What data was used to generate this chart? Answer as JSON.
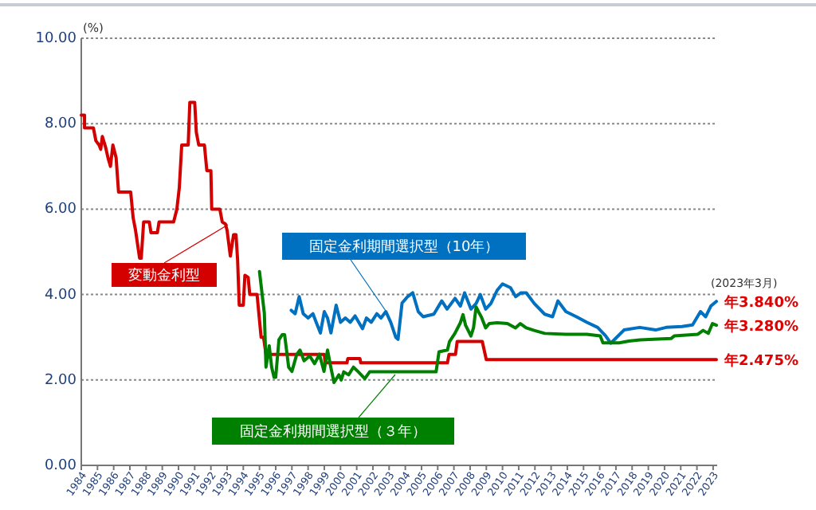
{
  "chart_data": {
    "type": "line",
    "ylabel": "(%)",
    "xlim": [
      1984,
      2023.25
    ],
    "xticks": [
      1984,
      1985,
      1986,
      1987,
      1988,
      1989,
      1990,
      1991,
      1992,
      1993,
      1994,
      1995,
      1996,
      1997,
      1998,
      1999,
      2000,
      2001,
      2002,
      2003,
      2004,
      2005,
      2006,
      2007,
      2008,
      2009,
      2010,
      2011,
      2012,
      2013,
      2014,
      2015,
      2016,
      2017,
      2018,
      2019,
      2020,
      2021,
      2022,
      2023
    ],
    "ylim": [
      0,
      10
    ],
    "yticks": [
      {
        "value": 0,
        "label": "0.00"
      },
      {
        "value": 2,
        "label": "2.00"
      },
      {
        "value": 4,
        "label": "4.00"
      },
      {
        "value": 6,
        "label": "6.00"
      },
      {
        "value": 8,
        "label": "8.00"
      },
      {
        "value": 10,
        "label": "10.00"
      }
    ],
    "grid": "y",
    "legend": false,
    "marker": "none",
    "line_style": "solid",
    "series": [
      {
        "name": "変動金利型",
        "color": "#d40000",
        "x": [
          1984.0,
          1984.2,
          1984.2,
          1984.75,
          1984.9,
          1985.1,
          1985.2,
          1985.3,
          1985.5,
          1985.65,
          1985.8,
          1985.95,
          1986.15,
          1986.3,
          1987.05,
          1987.2,
          1987.35,
          1987.6,
          1987.7,
          1987.85,
          1988.2,
          1988.3,
          1988.7,
          1988.8,
          1989.7,
          1989.9,
          1990.05,
          1990.2,
          1990.6,
          1990.7,
          1991.0,
          1991.1,
          1991.25,
          1991.6,
          1991.75,
          1992.0,
          1992.05,
          1992.55,
          1992.7,
          1992.9,
          1993.0,
          1993.2,
          1993.4,
          1993.55,
          1993.65,
          1993.75,
          1994.0,
          1994.1,
          1994.3,
          1994.4,
          1994.85,
          1995.1,
          1995.25,
          1995.4,
          1999.0,
          1999.05,
          2000.4,
          2000.45,
          2001.2,
          2001.25,
          2006.6,
          2006.7,
          2007.1,
          2007.2,
          2008.75,
          2009.0,
          2023.2
        ],
        "values": [
          8.2,
          8.2,
          7.9,
          7.9,
          7.6,
          7.5,
          7.4,
          7.7,
          7.45,
          7.2,
          7.0,
          7.5,
          7.2,
          6.4,
          6.4,
          5.8,
          5.5,
          4.85,
          4.85,
          5.7,
          5.7,
          5.45,
          5.45,
          5.7,
          5.7,
          6.0,
          6.5,
          7.5,
          7.5,
          8.5,
          8.5,
          7.8,
          7.5,
          7.5,
          6.9,
          6.9,
          6.0,
          6.0,
          5.7,
          5.65,
          5.5,
          4.9,
          5.4,
          5.4,
          4.8,
          3.75,
          3.75,
          4.45,
          4.4,
          4.0,
          4.0,
          3.0,
          3.0,
          2.6,
          2.6,
          2.4,
          2.4,
          2.5,
          2.5,
          2.4,
          2.4,
          2.6,
          2.6,
          2.9,
          2.9,
          2.475,
          2.475
        ],
        "value_labels": [
          null,
          null,
          null,
          null,
          null,
          null,
          null,
          null,
          null,
          null,
          null,
          null,
          null,
          null,
          null,
          null,
          null,
          null,
          null,
          null,
          null,
          null,
          null,
          null,
          null,
          null,
          null,
          null,
          null,
          null,
          null,
          null,
          null,
          null,
          null,
          null,
          null,
          null,
          null,
          null,
          null,
          null,
          null,
          null,
          null,
          null,
          null,
          null,
          null,
          null,
          null,
          null,
          null,
          null,
          null,
          null,
          null,
          null,
          null,
          null,
          null,
          null,
          null,
          null,
          null,
          null,
          "年2.475%"
        ]
      },
      {
        "name": "固定金利期間選択型（10年）",
        "color": "#0070c0",
        "x": [
          1996.96,
          1997.2,
          1997.45,
          1997.7,
          1998.0,
          1998.3,
          1998.5,
          1998.76,
          1999.0,
          1999.2,
          1999.41,
          1999.73,
          2000.0,
          2000.3,
          2000.6,
          2000.9,
          2001.36,
          2001.6,
          2001.9,
          2002.24,
          2002.5,
          2002.8,
          2003.1,
          2003.41,
          2003.55,
          2003.8,
          2004.14,
          2004.46,
          2004.8,
          2005.1,
          2005.76,
          2006.25,
          2006.58,
          2007.07,
          2007.4,
          2007.66,
          2008.05,
          2008.37,
          2008.63,
          2008.96,
          2009.28,
          2009.67,
          2010.0,
          2010.49,
          2010.81,
          2011.14,
          2011.47,
          2011.96,
          2012.6,
          2013.09,
          2013.42,
          2013.91,
          2014.56,
          2015.21,
          2015.87,
          2016.35,
          2016.68,
          2017.0,
          2017.5,
          2018.47,
          2019.45,
          2020.1,
          2021.08,
          2021.73,
          2022.22,
          2022.54,
          2022.86,
          2023.2
        ],
        "values": [
          3.63,
          3.55,
          3.95,
          3.55,
          3.45,
          3.55,
          3.35,
          3.1,
          3.6,
          3.45,
          3.1,
          3.75,
          3.35,
          3.45,
          3.35,
          3.5,
          3.2,
          3.45,
          3.35,
          3.55,
          3.45,
          3.6,
          3.35,
          3.0,
          2.95,
          3.8,
          3.95,
          4.04,
          3.6,
          3.48,
          3.54,
          3.85,
          3.66,
          3.91,
          3.73,
          4.04,
          3.66,
          3.79,
          4.0,
          3.66,
          3.79,
          4.1,
          4.25,
          4.16,
          3.95,
          4.04,
          4.04,
          3.79,
          3.54,
          3.48,
          3.85,
          3.6,
          3.48,
          3.35,
          3.23,
          3.04,
          2.86,
          2.98,
          3.17,
          3.23,
          3.17,
          3.23,
          3.25,
          3.29,
          3.6,
          3.48,
          3.73,
          3.84
        ],
        "value_labels": [
          null,
          null,
          null,
          null,
          null,
          null,
          null,
          null,
          null,
          null,
          null,
          null,
          null,
          null,
          null,
          null,
          null,
          null,
          null,
          null,
          null,
          null,
          null,
          null,
          null,
          null,
          null,
          null,
          null,
          null,
          null,
          null,
          null,
          null,
          null,
          null,
          null,
          null,
          null,
          null,
          null,
          null,
          null,
          null,
          null,
          null,
          null,
          null,
          null,
          null,
          null,
          null,
          null,
          null,
          null,
          null,
          null,
          null,
          null,
          null,
          null,
          null,
          null,
          null,
          null,
          null,
          null,
          "年3.840%"
        ]
      },
      {
        "name": "固定金利期間選択型（３年）",
        "color": "#008000",
        "x": [
          1995.0,
          1995.3,
          1995.4,
          1995.6,
          1995.75,
          1995.9,
          1996.0,
          1996.2,
          1996.4,
          1996.55,
          1996.8,
          1997.0,
          1997.3,
          1997.5,
          1997.75,
          1998.1,
          1998.4,
          1998.7,
          1998.98,
          1999.2,
          1999.4,
          1999.6,
          1999.9,
          2000.05,
          2000.2,
          2000.5,
          2000.8,
          2001.1,
          2001.5,
          2001.8,
          2005.9,
          2006.08,
          2006.6,
          2006.73,
          2007.06,
          2007.4,
          2007.56,
          2007.72,
          2008.05,
          2008.21,
          2008.37,
          2008.53,
          2008.7,
          2008.96,
          2009.18,
          2009.67,
          2010.3,
          2010.8,
          2011.1,
          2011.46,
          2011.95,
          2012.6,
          2013.9,
          2015.2,
          2016.03,
          2016.2,
          2017.2,
          2017.8,
          2018.5,
          2020.4,
          2020.6,
          2022.06,
          2022.38,
          2022.7,
          2022.96,
          2023.2
        ],
        "values": [
          4.54,
          3.56,
          2.3,
          2.8,
          2.3,
          2.06,
          2.06,
          2.94,
          3.06,
          3.06,
          2.3,
          2.2,
          2.6,
          2.7,
          2.45,
          2.56,
          2.38,
          2.6,
          2.2,
          2.7,
          2.3,
          1.94,
          2.12,
          2.0,
          2.19,
          2.12,
          2.3,
          2.19,
          2.03,
          2.19,
          2.19,
          2.66,
          2.7,
          2.9,
          3.09,
          3.34,
          3.53,
          3.28,
          3.03,
          3.22,
          3.71,
          3.59,
          3.47,
          3.22,
          3.32,
          3.34,
          3.32,
          3.22,
          3.32,
          3.22,
          3.16,
          3.09,
          3.07,
          3.07,
          3.03,
          2.87,
          2.87,
          2.91,
          2.94,
          2.97,
          3.03,
          3.07,
          3.16,
          3.09,
          3.32,
          3.28
        ],
        "value_labels": [
          null,
          null,
          null,
          null,
          null,
          null,
          null,
          null,
          null,
          null,
          null,
          null,
          null,
          null,
          null,
          null,
          null,
          null,
          null,
          null,
          null,
          null,
          null,
          null,
          null,
          null,
          null,
          null,
          null,
          null,
          null,
          null,
          null,
          null,
          null,
          null,
          null,
          null,
          null,
          null,
          null,
          null,
          null,
          null,
          null,
          null,
          null,
          null,
          null,
          null,
          null,
          null,
          null,
          null,
          null,
          null,
          null,
          null,
          null,
          null,
          null,
          null,
          null,
          null,
          null,
          "年3.280%"
        ]
      }
    ],
    "annotations": [
      "(2023年3月)"
    ]
  }
}
